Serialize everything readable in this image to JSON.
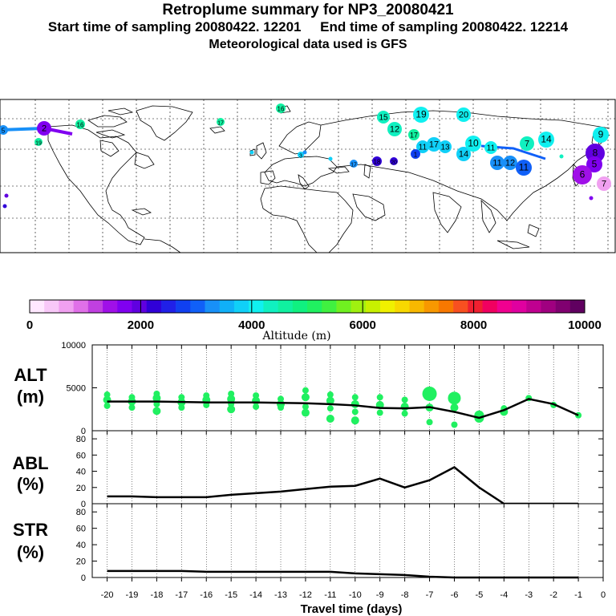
{
  "header": {
    "title": "Retroplume summary for NP3_20080421",
    "sampling_line": "Start time of sampling 20080422. 12201     End time of sampling 20080422. 12214",
    "met_line": "Meteorological data used is GFS"
  },
  "colorbar": {
    "label": "Altitude (m)",
    "ticks": [
      "0",
      "2000",
      "4000",
      "6000",
      "8000",
      "10000"
    ],
    "colors": [
      "#ffe8ff",
      "#f8c8f8",
      "#f0a0f0",
      "#e070e8",
      "#c040e0",
      "#a010e8",
      "#8000f0",
      "#6000e0",
      "#3000d8",
      "#2020e8",
      "#1040f0",
      "#1060f8",
      "#1890f8",
      "#10b0f8",
      "#10d0f8",
      "#10f0f0",
      "#10f0c0",
      "#10f0a0",
      "#10f080",
      "#20f060",
      "#40f040",
      "#70f020",
      "#a0f010",
      "#c8f000",
      "#f0f000",
      "#f8d800",
      "#f8b800",
      "#f89800",
      "#f87800",
      "#f85020",
      "#f02030",
      "#f00060",
      "#f00090",
      "#e000a0",
      "#c00090",
      "#a00080",
      "#800070",
      "#600060"
    ]
  },
  "map_labels": [
    {
      "text": "16",
      "color": "#10f0a0"
    },
    {
      "text": "16",
      "color": "#10f0a0"
    },
    {
      "text": "17",
      "color": "#10f0a0"
    },
    {
      "text": "19",
      "color": "#10f0a0"
    },
    {
      "text": "15",
      "color": "#10f0c0"
    },
    {
      "text": "19",
      "color": "#10f0f0"
    },
    {
      "text": "20",
      "color": "#10f0f0"
    },
    {
      "text": "12",
      "color": "#10f0c0"
    },
    {
      "text": "17",
      "color": "#10f0a0"
    },
    {
      "text": "11",
      "color": "#10d0f8"
    },
    {
      "text": "17",
      "color": "#10d0f8"
    },
    {
      "text": "13",
      "color": "#10d0f8"
    },
    {
      "text": "14",
      "color": "#10d0f8"
    },
    {
      "text": "10",
      "color": "#10f0f0"
    },
    {
      "text": "11",
      "color": "#10f0f0"
    },
    {
      "text": "7",
      "color": "#10f0c0"
    },
    {
      "text": "14",
      "color": "#10f0f0"
    },
    {
      "text": "11",
      "color": "#1890f8"
    },
    {
      "text": "12",
      "color": "#1890f8"
    },
    {
      "text": "11",
      "color": "#1060f8"
    },
    {
      "text": "9",
      "color": "#10f0f0"
    },
    {
      "text": "8",
      "color": "#6000e0"
    },
    {
      "text": "5",
      "color": "#8000f0"
    },
    {
      "text": "6",
      "color": "#a010e8"
    },
    {
      "text": "7",
      "color": "#f0a0f0"
    },
    {
      "text": "2",
      "color": "#8000f0"
    },
    {
      "text": "5",
      "color": "#1890f8"
    },
    {
      "text": "18",
      "color": "#3000d8"
    },
    {
      "text": "20",
      "color": "#3000d8"
    },
    {
      "text": "17",
      "color": "#1890f8"
    },
    {
      "text": "3",
      "color": "#10d0f8"
    },
    {
      "text": "1",
      "color": "#1040f0"
    }
  ],
  "chart_data": [
    {
      "type": "line",
      "panel": "ALT",
      "ylabel": "ALT\n(m)",
      "ylabel_line1": "ALT",
      "ylabel_line2": "(m)",
      "ylim": [
        0,
        10000
      ],
      "yticks": [
        "0",
        "5000",
        "10000"
      ],
      "x": [
        -20,
        -19,
        -18,
        -17,
        -16,
        -15,
        -14,
        -13,
        -12,
        -11,
        -10,
        -9,
        -8,
        -7,
        -6,
        -5,
        -4,
        -3,
        -2,
        -1
      ],
      "series": [
        {
          "name": "mean altitude",
          "values": [
            3400,
            3400,
            3400,
            3350,
            3300,
            3300,
            3300,
            3250,
            3200,
            3100,
            2950,
            2650,
            2600,
            2750,
            2200,
            1500,
            2400,
            3700,
            3100,
            1800
          ]
        }
      ],
      "scatter_points": [
        {
          "x": -20,
          "values": [
            4200,
            3600,
            2900
          ]
        },
        {
          "x": -19,
          "values": [
            3900,
            3400,
            2700
          ]
        },
        {
          "x": -18,
          "values": [
            4300,
            3800,
            3100,
            2300
          ]
        },
        {
          "x": -17,
          "values": [
            3900,
            3300,
            2700
          ]
        },
        {
          "x": -16,
          "values": [
            4100,
            3600,
            3000
          ]
        },
        {
          "x": -15,
          "values": [
            4300,
            3700,
            3100,
            2500
          ]
        },
        {
          "x": -14,
          "values": [
            4100,
            3500,
            2800
          ]
        },
        {
          "x": -13,
          "values": [
            3700,
            3100,
            2700
          ]
        },
        {
          "x": -12,
          "values": [
            4700,
            3900,
            2800,
            2100
          ]
        },
        {
          "x": -11,
          "values": [
            4200,
            3500,
            2600,
            1400
          ]
        },
        {
          "x": -10,
          "values": [
            3900,
            3100,
            2200,
            1200
          ]
        },
        {
          "x": -9,
          "values": [
            3900,
            3000,
            2100
          ]
        },
        {
          "x": -8,
          "values": [
            3600,
            2800,
            2000
          ]
        },
        {
          "x": -7,
          "values": [
            4300,
            2700,
            1000
          ]
        },
        {
          "x": -6,
          "values": [
            3800,
            2700,
            700
          ]
        },
        {
          "x": -5,
          "values": [
            1800,
            1500
          ]
        },
        {
          "x": -4,
          "values": [
            2600,
            2200
          ]
        },
        {
          "x": -3,
          "values": [
            3800
          ]
        },
        {
          "x": -2,
          "values": [
            3000
          ]
        },
        {
          "x": -1,
          "values": [
            1800
          ]
        }
      ],
      "point_color": "#20f060"
    },
    {
      "type": "line",
      "panel": "ABL",
      "ylabel_line1": "ABL",
      "ylabel_line2": "(%)",
      "ylim": [
        0,
        90
      ],
      "yticks": [
        "0",
        "20",
        "40",
        "60",
        "80"
      ],
      "x": [
        -20,
        -19,
        -18,
        -17,
        -16,
        -15,
        -14,
        -13,
        -12,
        -11,
        -10,
        -9,
        -8,
        -7,
        -6,
        -5,
        -4,
        -3,
        -2,
        -1
      ],
      "series": [
        {
          "name": "ABL fraction",
          "values": [
            9,
            9,
            8,
            8,
            8,
            11,
            13,
            15,
            18,
            21,
            22,
            31,
            20,
            29,
            45,
            20,
            0,
            0,
            0,
            0
          ]
        }
      ]
    },
    {
      "type": "line",
      "panel": "STR",
      "ylabel_line1": "STR",
      "ylabel_line2": "(%)",
      "ylim": [
        0,
        90
      ],
      "yticks": [
        "0",
        "20",
        "40",
        "60",
        "80"
      ],
      "x": [
        -20,
        -19,
        -18,
        -17,
        -16,
        -15,
        -14,
        -13,
        -12,
        -11,
        -10,
        -9,
        -8,
        -7,
        -6,
        -5,
        -4,
        -3,
        -2,
        -1
      ],
      "xticks": [
        "-20",
        "-19",
        "-18",
        "-17",
        "-16",
        "-15",
        "-14",
        "-13",
        "-12",
        "-11",
        "-10",
        "-9",
        "-8",
        "-7",
        "-6",
        "-5",
        "-4",
        "-3",
        "-2",
        "-1",
        "0"
      ],
      "xlabel": "Travel time (days)",
      "series": [
        {
          "name": "stratosphere fraction",
          "values": [
            8,
            8,
            8,
            8,
            7,
            7,
            7,
            7,
            7,
            7,
            5,
            4,
            3,
            1,
            0,
            0,
            0,
            0,
            0,
            0
          ]
        }
      ]
    }
  ]
}
